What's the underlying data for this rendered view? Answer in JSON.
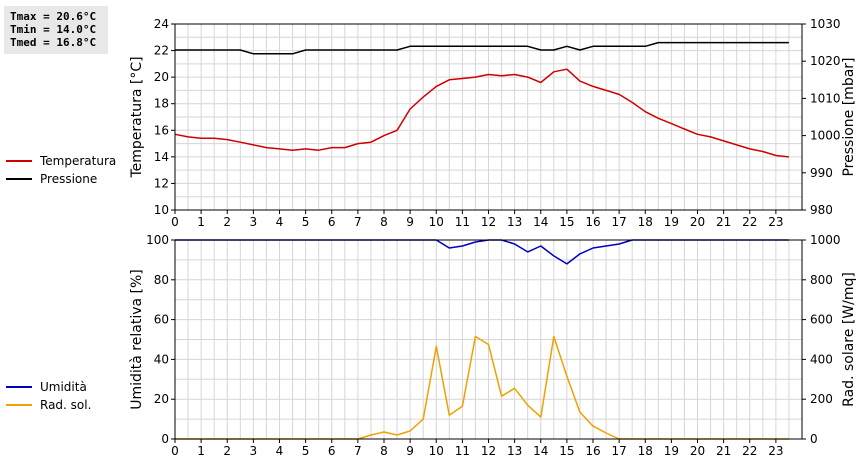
{
  "stats": {
    "tmax": "Tmax = 20.6°C",
    "tmin": "Tmin = 14.0°C",
    "tmed": "Tmed = 16.8°C"
  },
  "legend_top": [
    {
      "label": "Temperatura",
      "color": "#d00000"
    },
    {
      "label": "Pressione",
      "color": "#000000"
    }
  ],
  "legend_bottom": [
    {
      "label": "Umidità",
      "color": "#0000c0"
    },
    {
      "label": "Rad. sol.",
      "color": "#f0a000"
    }
  ],
  "chart_data": [
    {
      "type": "line",
      "ylabel": "Temperatura [°C]",
      "y2label": "Pressione [mbar]",
      "xlim": [
        0,
        24
      ],
      "ylim": [
        10,
        24
      ],
      "y2lim": [
        980,
        1030
      ],
      "x_ticks": [
        "0",
        "1",
        "2",
        "3",
        "4",
        "5",
        "6",
        "7",
        "8",
        "9",
        "10",
        "11",
        "12",
        "13",
        "14",
        "15",
        "16",
        "17",
        "18",
        "19",
        "20",
        "21",
        "22",
        "23"
      ],
      "y_ticks": [
        "10",
        "12",
        "14",
        "16",
        "18",
        "20",
        "22",
        "24"
      ],
      "y2_ticks": [
        "980",
        "990",
        "1000",
        "1010",
        "1020",
        "1030"
      ],
      "grid": true,
      "series": [
        {
          "name": "Temperatura",
          "axis": "left",
          "color": "#d00000",
          "x": [
            0,
            0.5,
            1,
            1.5,
            2,
            2.5,
            3,
            3.5,
            4,
            4.5,
            5,
            5.5,
            6,
            6.5,
            7,
            7.5,
            8,
            8.5,
            9,
            9.5,
            10,
            10.5,
            11,
            11.5,
            12,
            12.5,
            13,
            13.5,
            14,
            14.5,
            15,
            15.5,
            16,
            16.5,
            17,
            17.5,
            18,
            18.5,
            19,
            19.5,
            20,
            20.5,
            21,
            21.5,
            22,
            22.5,
            23,
            23.5
          ],
          "y": [
            15.7,
            15.5,
            15.4,
            15.4,
            15.3,
            15.1,
            14.9,
            14.7,
            14.6,
            14.5,
            14.6,
            14.5,
            14.7,
            14.7,
            15.0,
            15.1,
            15.6,
            16.0,
            17.6,
            18.5,
            19.3,
            19.8,
            19.9,
            20.0,
            20.2,
            20.1,
            20.2,
            20.0,
            19.6,
            20.4,
            20.6,
            19.7,
            19.3,
            19.0,
            18.7,
            18.1,
            17.4,
            16.9,
            16.5,
            16.1,
            15.7,
            15.5,
            15.2,
            14.9,
            14.6,
            14.4,
            14.1,
            14.0
          ]
        },
        {
          "name": "Pressione",
          "axis": "right",
          "color": "#000000",
          "x": [
            0,
            0.5,
            1,
            1.5,
            2,
            2.5,
            3,
            3.5,
            4,
            4.5,
            5,
            5.5,
            6,
            6.5,
            7,
            7.5,
            8,
            8.5,
            9,
            9.5,
            10,
            10.5,
            11,
            11.5,
            12,
            12.5,
            13,
            13.5,
            14,
            14.5,
            15,
            15.5,
            16,
            16.5,
            17,
            17.5,
            18,
            18.5,
            19,
            19.5,
            20,
            20.5,
            21,
            21.5,
            22,
            22.5,
            23,
            23.5
          ],
          "y": [
            1023,
            1023,
            1023,
            1023,
            1023,
            1023,
            1022,
            1022,
            1022,
            1022,
            1023,
            1023,
            1023,
            1023,
            1023,
            1023,
            1023,
            1023,
            1024,
            1024,
            1024,
            1024,
            1024,
            1024,
            1024,
            1024,
            1024,
            1024,
            1023,
            1023,
            1024,
            1023,
            1024,
            1024,
            1024,
            1024,
            1024,
            1025,
            1025,
            1025,
            1025,
            1025,
            1025,
            1025,
            1025,
            1025,
            1025,
            1025
          ]
        }
      ]
    },
    {
      "type": "line",
      "ylabel": "Umidità relativa [%]",
      "y2label": "Rad. solare [W/mq]",
      "xlim": [
        0,
        24
      ],
      "ylim": [
        0,
        100
      ],
      "y2lim": [
        0,
        1000
      ],
      "x_ticks": [
        "0",
        "1",
        "2",
        "3",
        "4",
        "5",
        "6",
        "7",
        "8",
        "9",
        "10",
        "11",
        "12",
        "13",
        "14",
        "15",
        "16",
        "17",
        "18",
        "19",
        "20",
        "21",
        "22",
        "23"
      ],
      "y_ticks": [
        "0",
        "20",
        "40",
        "60",
        "80",
        "100"
      ],
      "y2_ticks": [
        "0",
        "200",
        "400",
        "600",
        "800",
        "1000"
      ],
      "grid": true,
      "series": [
        {
          "name": "Umidità",
          "axis": "left",
          "color": "#0000c0",
          "x": [
            0,
            0.5,
            1,
            1.5,
            2,
            2.5,
            3,
            3.5,
            4,
            4.5,
            5,
            5.5,
            6,
            6.5,
            7,
            7.5,
            8,
            8.5,
            9,
            9.5,
            10,
            10.5,
            11,
            11.5,
            12,
            12.5,
            13,
            13.5,
            14,
            14.5,
            15,
            15.5,
            16,
            16.5,
            17,
            17.5,
            18,
            18.5,
            19,
            19.5,
            20,
            20.5,
            21,
            21.5,
            22,
            22.5,
            23,
            23.5
          ],
          "y": [
            100,
            100,
            100,
            100,
            100,
            100,
            100,
            100,
            100,
            100,
            100,
            100,
            100,
            100,
            100,
            100,
            100,
            100,
            100,
            100,
            100,
            96,
            97,
            99,
            100,
            100,
            98,
            94,
            97,
            92,
            88,
            93,
            96,
            97,
            98,
            100,
            100,
            100,
            100,
            100,
            100,
            100,
            100,
            100,
            100,
            100,
            100,
            100
          ]
        },
        {
          "name": "Rad. sol.",
          "axis": "right",
          "color": "#f0a000",
          "x": [
            0,
            0.5,
            1,
            1.5,
            2,
            2.5,
            3,
            3.5,
            4,
            4.5,
            5,
            5.5,
            6,
            6.5,
            7,
            7.5,
            8,
            8.5,
            9,
            9.5,
            10,
            10.5,
            11,
            11.5,
            12,
            12.5,
            13,
            13.5,
            14,
            14.5,
            15,
            15.5,
            16,
            16.5,
            17,
            17.5,
            18,
            18.5,
            19,
            19.5,
            20,
            20.5,
            21,
            21.5,
            22,
            22.5,
            23,
            23.5
          ],
          "y": [
            0,
            0,
            0,
            0,
            0,
            0,
            0,
            0,
            0,
            0,
            0,
            0,
            0,
            0,
            0,
            20,
            35,
            20,
            40,
            100,
            465,
            120,
            165,
            515,
            475,
            215,
            255,
            170,
            110,
            515,
            315,
            135,
            65,
            30,
            0,
            0,
            0,
            0,
            0,
            0,
            0,
            0,
            0,
            0,
            0,
            0,
            0,
            0
          ]
        }
      ]
    }
  ]
}
